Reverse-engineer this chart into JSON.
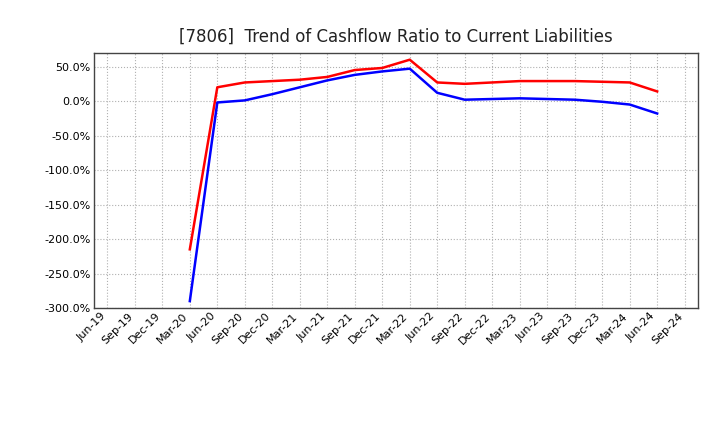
{
  "title": "[7806]  Trend of Cashflow Ratio to Current Liabilities",
  "x_labels": [
    "Jun-19",
    "Sep-19",
    "Dec-19",
    "Mar-20",
    "Jun-20",
    "Sep-20",
    "Dec-20",
    "Mar-21",
    "Jun-21",
    "Sep-21",
    "Dec-21",
    "Mar-22",
    "Jun-22",
    "Sep-22",
    "Dec-22",
    "Mar-23",
    "Jun-23",
    "Sep-23",
    "Dec-23",
    "Mar-24",
    "Jun-24",
    "Sep-24"
  ],
  "operating_cf": [
    null,
    null,
    null,
    -215.0,
    20.0,
    27.0,
    29.0,
    31.0,
    35.0,
    45.0,
    48.0,
    60.0,
    27.0,
    25.0,
    27.0,
    29.0,
    29.0,
    29.0,
    28.0,
    27.0,
    14.0,
    null
  ],
  "free_cf": [
    null,
    null,
    null,
    -290.0,
    -2.0,
    1.0,
    10.0,
    20.0,
    30.0,
    38.0,
    43.0,
    47.0,
    12.0,
    2.0,
    3.0,
    4.0,
    3.0,
    2.0,
    -1.0,
    -5.0,
    -18.0,
    null
  ],
  "ylim": [
    -300,
    70
  ],
  "yticks": [
    50.0,
    0.0,
    -50.0,
    -100.0,
    -150.0,
    -200.0,
    -250.0,
    -300.0
  ],
  "operating_color": "#ff0000",
  "free_color": "#0000ff",
  "background_color": "#ffffff",
  "grid_color": "#b0b0b0",
  "title_fontsize": 12,
  "tick_fontsize": 8,
  "legend_fontsize": 9
}
